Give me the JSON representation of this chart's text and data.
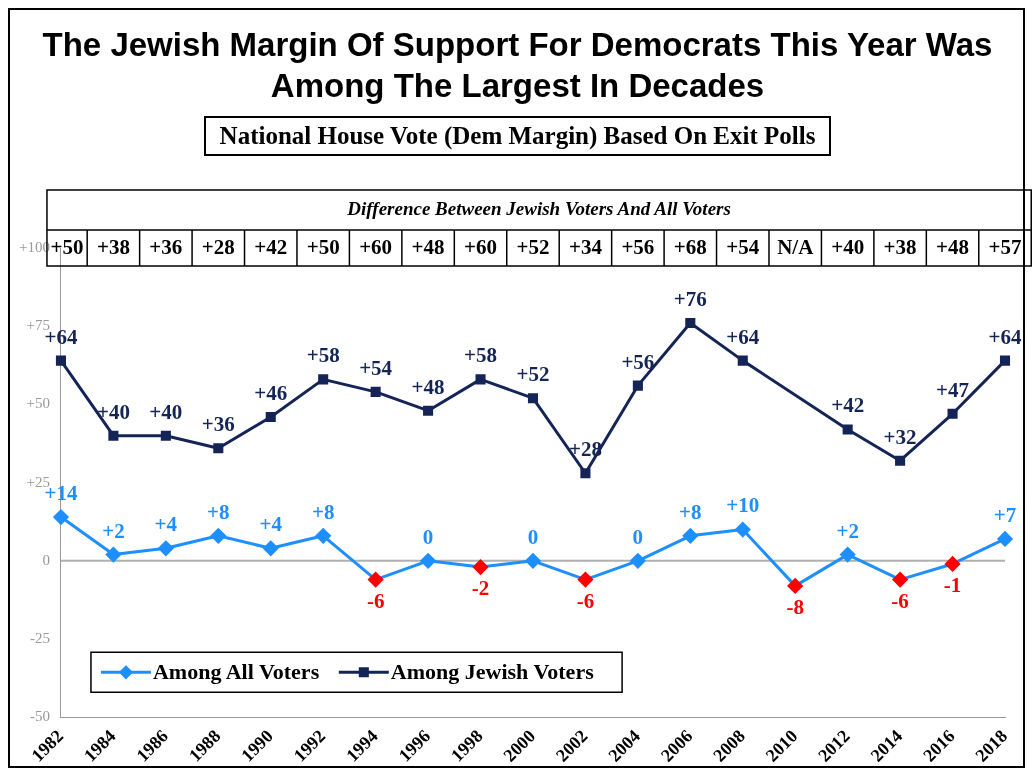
{
  "chart_data": {
    "type": "line",
    "title": "The Jewish Margin Of Support For Democrats This Year Was Among The Largest In Decades",
    "subtitle": "National House Vote (Dem Margin) Based On Exit Polls",
    "categories": [
      "1982",
      "1984",
      "1986",
      "1988",
      "1990",
      "1992",
      "1994",
      "1996",
      "1998",
      "2000",
      "2002",
      "2004",
      "2006",
      "2008",
      "2010",
      "2012",
      "2014",
      "2016",
      "2018"
    ],
    "series": [
      {
        "name": "Among All Voters",
        "color": "#1e8fff",
        "marker": "diamond",
        "colors": [
          "#1e8fff",
          "#1e8fff",
          "#1e8fff",
          "#1e8fff",
          "#1e8fff",
          "#1e8fff",
          "#ff0000",
          "#1e8fff",
          "#ff0000",
          "#1e8fff",
          "#ff0000",
          "#1e8fff",
          "#1e8fff",
          "#1e8fff",
          "#ff0000",
          "#1e8fff",
          "#ff0000",
          "#ff0000",
          "#1e8fff"
        ],
        "values": [
          14,
          2,
          4,
          8,
          4,
          8,
          -6,
          0,
          -2,
          0,
          -6,
          0,
          8,
          10,
          -8,
          2,
          -6,
          -1,
          7
        ],
        "value_labels": [
          "+14",
          "+2",
          "+4",
          "+8",
          "+4",
          "+8",
          "-6",
          "0",
          "-2",
          "0",
          "-6",
          "0",
          "+8",
          "+10",
          "-8",
          "+2",
          "-6",
          "-1",
          "+7"
        ]
      },
      {
        "name": "Among Jewish Voters",
        "color": "#142456",
        "marker": "square",
        "values": [
          64,
          40,
          40,
          36,
          46,
          58,
          54,
          48,
          58,
          52,
          28,
          56,
          76,
          64,
          null,
          42,
          32,
          47,
          64
        ],
        "value_labels": [
          "+64",
          "+40",
          "+40",
          "+36",
          "+46",
          "+58",
          "+54",
          "+48",
          "+58",
          "+52",
          "+28",
          "+56",
          "+76",
          "+64",
          null,
          "+42",
          "+32",
          "+47",
          "+64"
        ]
      }
    ],
    "ylim": [
      -50,
      100
    ],
    "yticks": [
      {
        "value": -50,
        "label": "-50"
      },
      {
        "value": -25,
        "label": "-25"
      },
      {
        "value": 0,
        "label": "0"
      },
      {
        "value": 25,
        "label": "+25"
      },
      {
        "value": 50,
        "label": "+50"
      },
      {
        "value": 75,
        "label": "+75"
      },
      {
        "value": 100,
        "label": "+100"
      }
    ],
    "ref_lines": [
      {
        "axis": "y",
        "value": 0,
        "color": "#b0b0b0"
      }
    ],
    "grid": false,
    "legend": "bottom left",
    "annotations": [
      "Difference Between Jewish Voters And All Voters",
      "+50",
      "+38",
      "+36",
      "+28",
      "+42",
      "+50",
      "+60",
      "+48",
      "+60",
      "+52",
      "+34",
      "+56",
      "+68",
      "+54",
      "N/A",
      "+40",
      "+38",
      "+48",
      "+57"
    ]
  }
}
